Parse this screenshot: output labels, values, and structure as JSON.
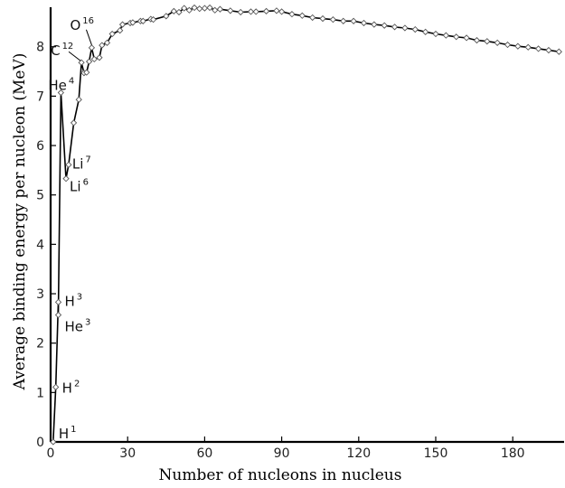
{
  "chart_data": {
    "type": "line",
    "title": "",
    "xlabel": "Number of nucleons in nucleus",
    "ylabel": "Average binding energy per nucleon (MeV)",
    "xlim": [
      0,
      200
    ],
    "ylim": [
      0,
      8.8
    ],
    "x_ticks": [
      "0",
      "30",
      "60",
      "90",
      "120",
      "150",
      "180"
    ],
    "x_tick_values": [
      0,
      30,
      60,
      90,
      120,
      150,
      180
    ],
    "y_ticks": [
      "0",
      "1",
      "2",
      "3",
      "4",
      "5",
      "6",
      "7",
      "8"
    ],
    "y_tick_values": [
      0,
      1,
      2,
      3,
      4,
      5,
      6,
      7,
      8
    ],
    "grid": false,
    "series": [
      {
        "values": [
          [
            1,
            0.0
          ],
          [
            2,
            1.11
          ],
          [
            3,
            2.83
          ],
          [
            3,
            2.57
          ],
          [
            4,
            7.07
          ],
          [
            6,
            5.33
          ],
          [
            7,
            5.61
          ],
          [
            9,
            6.46
          ],
          [
            11,
            6.93
          ],
          [
            12,
            7.68
          ],
          [
            13,
            7.47
          ],
          [
            14,
            7.48
          ],
          [
            15,
            7.7
          ],
          [
            16,
            7.98
          ],
          [
            17,
            7.75
          ],
          [
            19,
            7.78
          ],
          [
            20,
            8.03
          ],
          [
            22,
            8.08
          ],
          [
            24,
            8.26
          ],
          [
            27,
            8.33
          ],
          [
            28,
            8.45
          ],
          [
            31,
            8.48
          ],
          [
            32,
            8.49
          ],
          [
            35,
            8.52
          ],
          [
            36,
            8.52
          ],
          [
            39,
            8.56
          ],
          [
            40,
            8.55
          ],
          [
            45,
            8.62
          ],
          [
            48,
            8.72
          ],
          [
            50,
            8.7
          ],
          [
            52,
            8.78
          ],
          [
            54,
            8.74
          ],
          [
            56,
            8.79
          ],
          [
            58,
            8.77
          ],
          [
            60,
            8.78
          ],
          [
            62,
            8.79
          ],
          [
            64,
            8.74
          ],
          [
            66,
            8.76
          ],
          [
            70,
            8.73
          ],
          [
            74,
            8.7
          ],
          [
            78,
            8.71
          ],
          [
            80,
            8.71
          ],
          [
            84,
            8.72
          ],
          [
            88,
            8.73
          ],
          [
            90,
            8.71
          ],
          [
            94,
            8.66
          ],
          [
            98,
            8.63
          ],
          [
            102,
            8.59
          ],
          [
            106,
            8.57
          ],
          [
            110,
            8.55
          ],
          [
            114,
            8.52
          ],
          [
            118,
            8.52
          ],
          [
            122,
            8.48
          ],
          [
            126,
            8.45
          ],
          [
            130,
            8.43
          ],
          [
            134,
            8.4
          ],
          [
            138,
            8.38
          ],
          [
            142,
            8.35
          ],
          [
            146,
            8.3
          ],
          [
            150,
            8.26
          ],
          [
            154,
            8.23
          ],
          [
            158,
            8.2
          ],
          [
            162,
            8.18
          ],
          [
            166,
            8.13
          ],
          [
            170,
            8.11
          ],
          [
            174,
            8.08
          ],
          [
            178,
            8.04
          ],
          [
            182,
            8.01
          ],
          [
            186,
            7.99
          ],
          [
            190,
            7.96
          ],
          [
            194,
            7.93
          ],
          [
            198,
            7.9
          ]
        ]
      }
    ],
    "annotations": [
      {
        "text": "H",
        "sup": "1",
        "x": 1,
        "y": 0.0
      },
      {
        "text": "H",
        "sup": "2",
        "x": 2,
        "y": 1.11
      },
      {
        "text": "H",
        "sup": "3",
        "x": 3,
        "y": 2.83
      },
      {
        "text": "He",
        "sup": "3",
        "x": 3,
        "y": 2.57
      },
      {
        "text": "He",
        "sup": "4",
        "x": 4,
        "y": 7.07
      },
      {
        "text": "Li",
        "sup": "7",
        "x": 7,
        "y": 5.61
      },
      {
        "text": "Li",
        "sup": "6",
        "x": 6,
        "y": 5.33
      },
      {
        "text": "C",
        "sup": "12",
        "x": 12,
        "y": 7.68
      },
      {
        "text": "O",
        "sup": "16",
        "x": 16,
        "y": 7.98
      }
    ]
  }
}
